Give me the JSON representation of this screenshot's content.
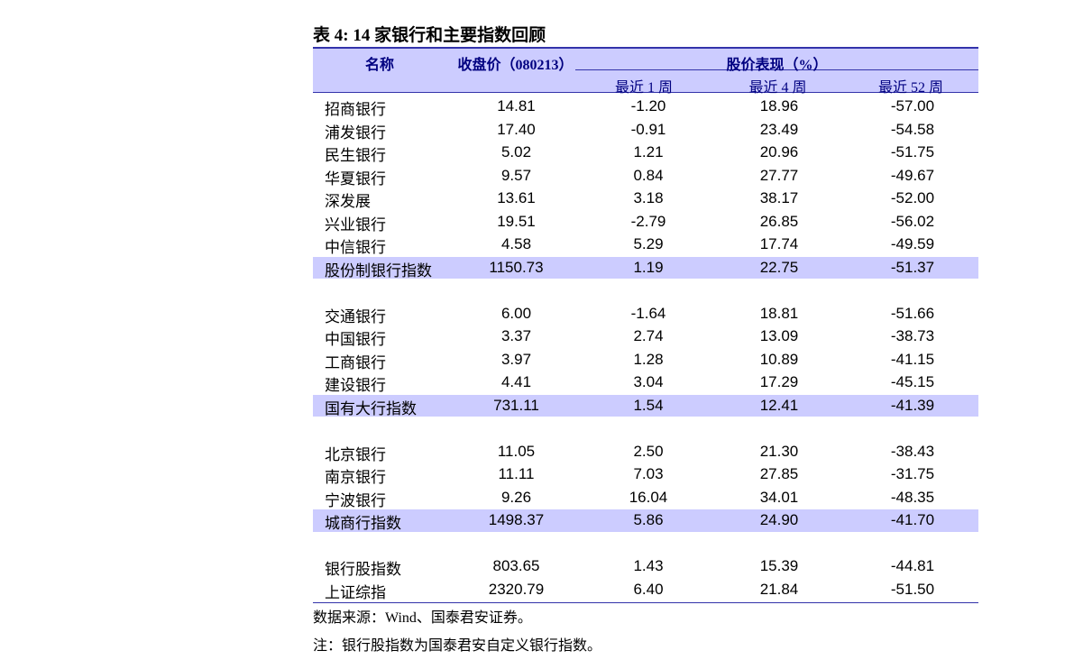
{
  "title": "表 4:  14 家银行和主要指数回顾",
  "header": {
    "name": "名称",
    "close": "收盘价（080213）",
    "performance": "股价表现（%）",
    "periods": [
      "最近 1 周",
      "最近 4 周",
      "最近 52 周"
    ]
  },
  "groups": [
    {
      "rows": [
        [
          "招商银行",
          "14.81",
          "-1.20",
          "18.96",
          "-57.00"
        ],
        [
          "浦发银行",
          "17.40",
          "-0.91",
          "23.49",
          "-54.58"
        ],
        [
          "民生银行",
          "5.02",
          "1.21",
          "20.96",
          "-51.75"
        ],
        [
          "华夏银行",
          "9.57",
          "0.84",
          "27.77",
          "-49.67"
        ],
        [
          "深发展",
          "13.61",
          "3.18",
          "38.17",
          "-52.00"
        ],
        [
          "兴业银行",
          "19.51",
          "-2.79",
          "26.85",
          "-56.02"
        ],
        [
          "中信银行",
          "4.58",
          "5.29",
          "17.74",
          "-49.59"
        ]
      ],
      "index": [
        "股份制银行指数",
        "1150.73",
        "1.19",
        "22.75",
        "-51.37"
      ]
    },
    {
      "rows": [
        [
          "交通银行",
          "6.00",
          "-1.64",
          "18.81",
          "-51.66"
        ],
        [
          "中国银行",
          "3.37",
          "2.74",
          "13.09",
          "-38.73"
        ],
        [
          "工商银行",
          "3.97",
          "1.28",
          "10.89",
          "-41.15"
        ],
        [
          "建设银行",
          "4.41",
          "3.04",
          "17.29",
          "-45.15"
        ]
      ],
      "index": [
        "国有大行指数",
        "731.11",
        "1.54",
        "12.41",
        "-41.39"
      ]
    },
    {
      "rows": [
        [
          "北京银行",
          "11.05",
          "2.50",
          "21.30",
          "-38.43"
        ],
        [
          "南京银行",
          "11.11",
          "7.03",
          "27.85",
          "-31.75"
        ],
        [
          "宁波银行",
          "9.26",
          "16.04",
          "34.01",
          "-48.35"
        ]
      ],
      "index": [
        "城商行指数",
        "1498.37",
        "5.86",
        "24.90",
        "-41.70"
      ]
    },
    {
      "rows": [
        [
          "银行股指数",
          "803.65",
          "1.43",
          "15.39",
          "-44.81"
        ],
        [
          "上证综指",
          "2320.79",
          "6.40",
          "21.84",
          "-51.50"
        ]
      ]
    }
  ],
  "footnotes": [
    "数据来源：Wind、国泰君安证券。",
    "注：银行股指数为国泰君安自定义银行指数。"
  ]
}
